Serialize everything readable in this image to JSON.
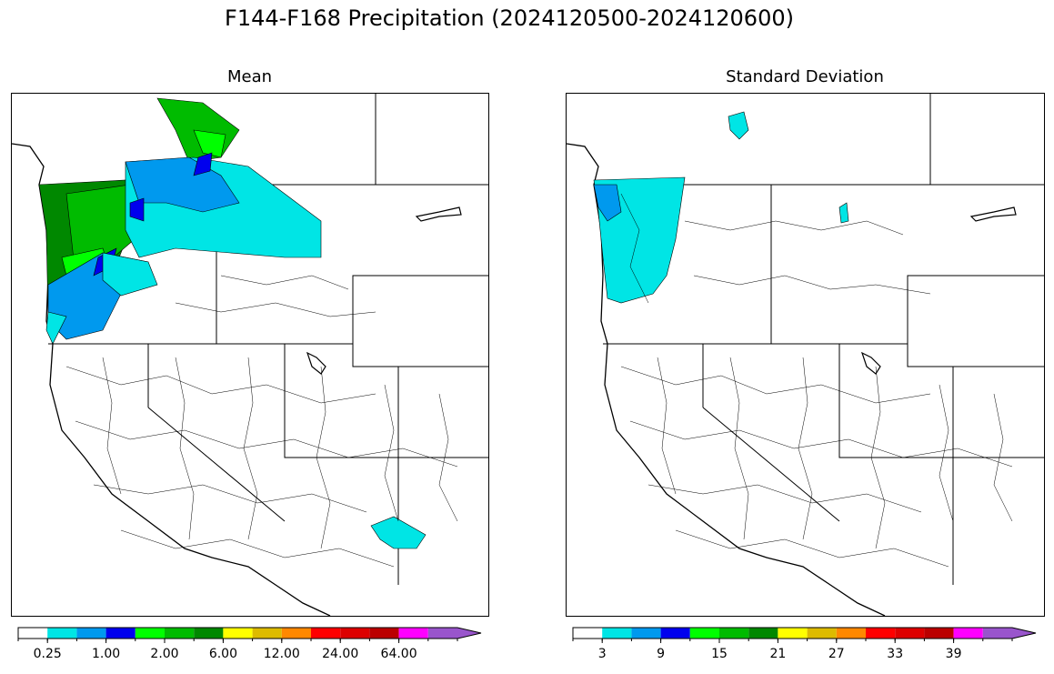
{
  "title": "F144-F168 Precipitation (2024120500-2024120600)",
  "panels": [
    {
      "name": "mean",
      "title": "Mean",
      "colorbar": {
        "colors": [
          "#ffffff",
          "#00e5e5",
          "#0099ee",
          "#0000ee",
          "#00ff00",
          "#00bb00",
          "#008800",
          "#ffff00",
          "#ddbb00",
          "#ff8800",
          "#ff0000",
          "#dd0000",
          "#bb0000",
          "#ff00ff",
          "#9955cc"
        ],
        "tick_labels": [
          "0.25",
          "1.00",
          "2.00",
          "6.00",
          "12.00",
          "24.00",
          "64.00"
        ],
        "extend": "max"
      }
    },
    {
      "name": "std",
      "title": "Standard Deviation",
      "colorbar": {
        "colors": [
          "#ffffff",
          "#00e5e5",
          "#0099ee",
          "#0000ee",
          "#00ff00",
          "#00bb00",
          "#008800",
          "#ffff00",
          "#ddbb00",
          "#ff8800",
          "#ff0000",
          "#dd0000",
          "#bb0000",
          "#ff00ff",
          "#9955cc"
        ],
        "tick_labels": [
          "3",
          "9",
          "15",
          "21",
          "27",
          "33",
          "39"
        ],
        "extend": "max"
      }
    }
  ]
}
